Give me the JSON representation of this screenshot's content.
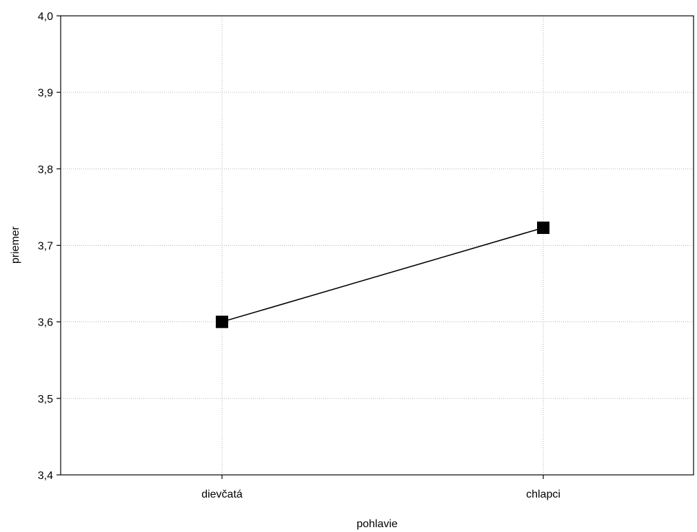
{
  "chart_data": {
    "type": "line",
    "title": "",
    "xlabel": "pohlavie",
    "ylabel": "priemer",
    "categories": [
      "dievčatá",
      "chlapci"
    ],
    "series": [
      {
        "values": [
          3.6,
          3.723
        ]
      }
    ],
    "ylim": [
      3.4,
      4.0
    ],
    "y_ticks": [
      "3,4",
      "3,5",
      "3,6",
      "3,7",
      "3,8",
      "3,9",
      "4,0"
    ],
    "y_tick_values": [
      3.4,
      3.5,
      3.6,
      3.7,
      3.8,
      3.9,
      4.0
    ],
    "grid": true,
    "marker": "square",
    "line_color": "#000000",
    "grid_color": "#b0b0b0"
  }
}
